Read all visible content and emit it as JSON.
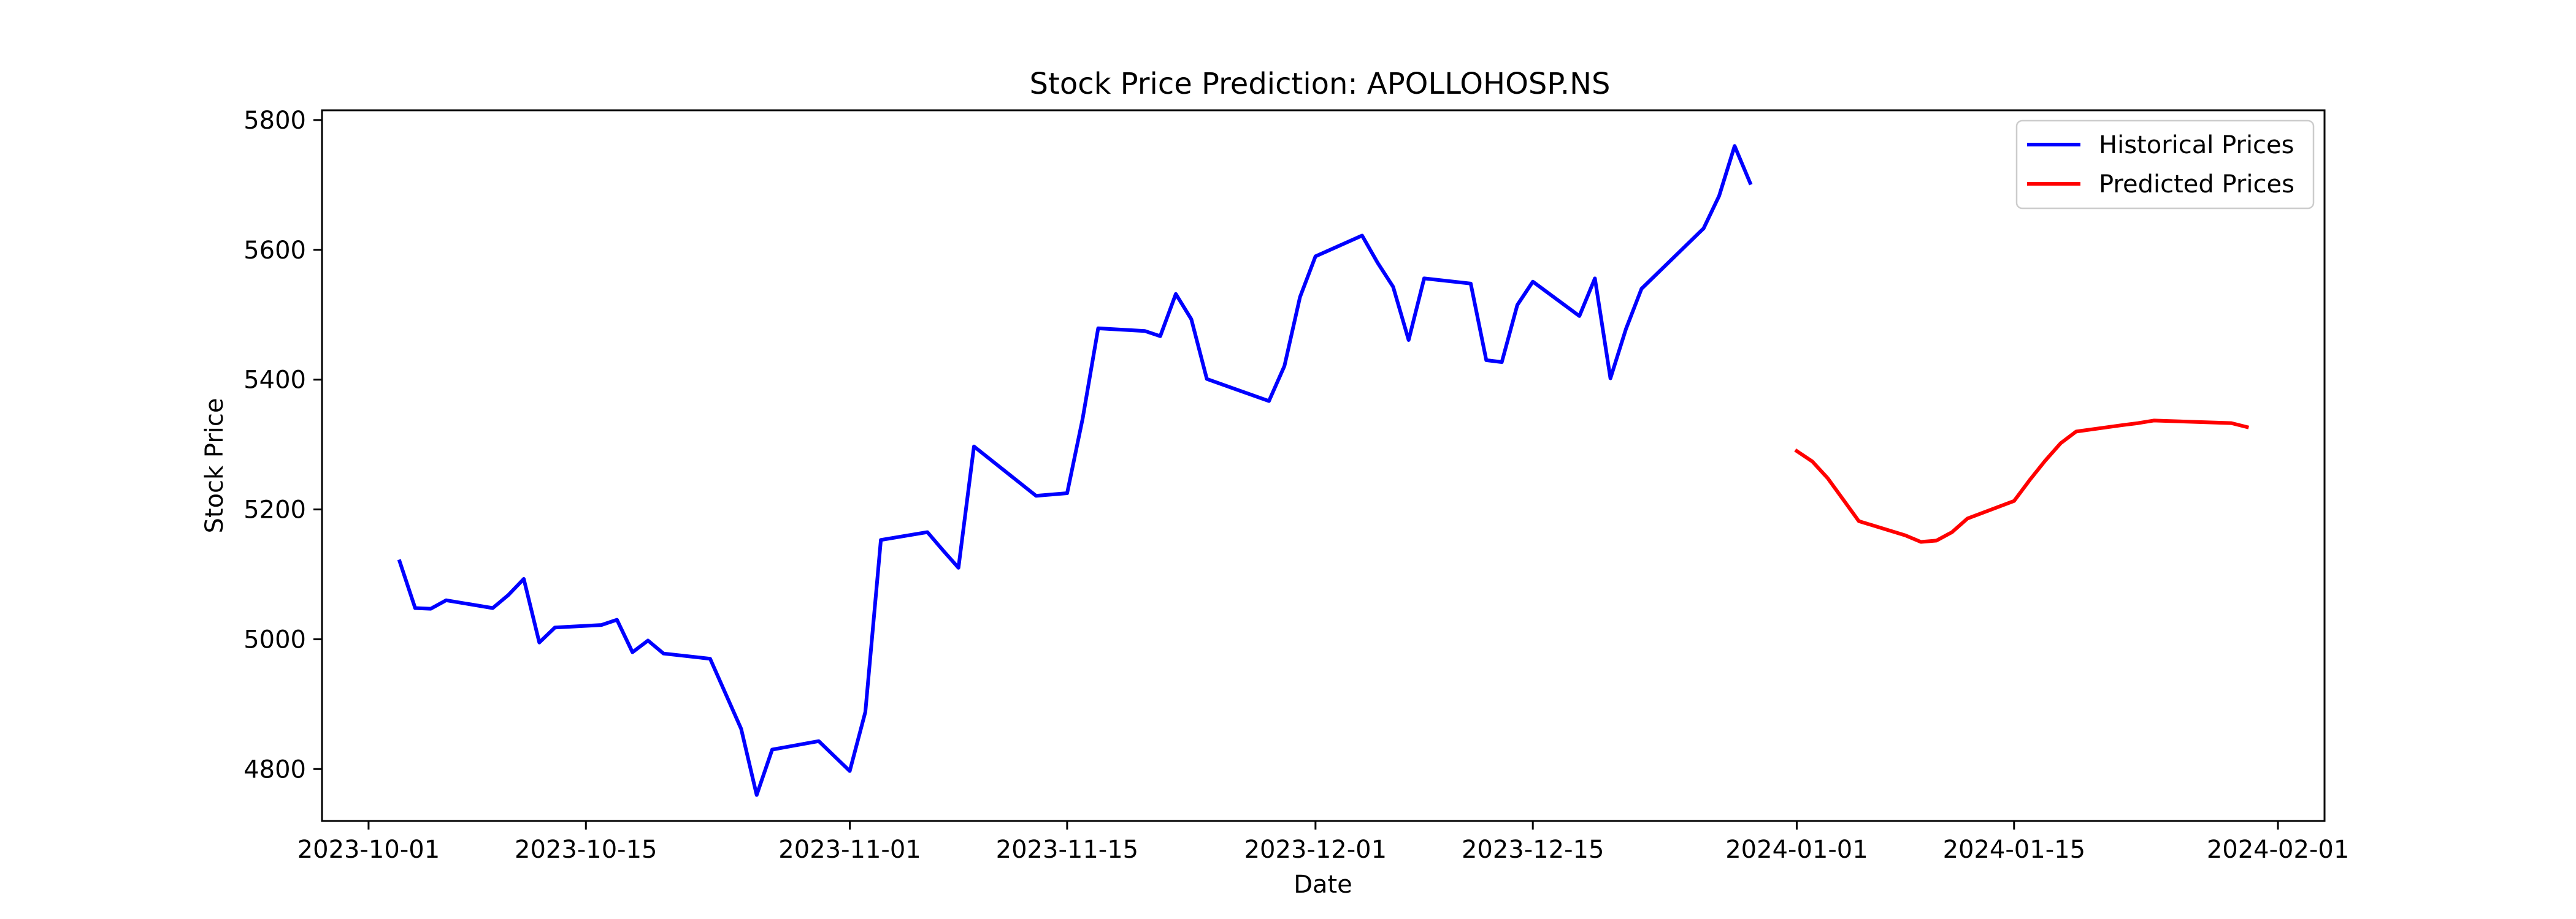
{
  "chart_data": {
    "type": "line",
    "title": "Stock Price Prediction: APOLLOHOSP.NS",
    "xlabel": "Date",
    "ylabel": "Stock Price",
    "xlim": [
      "2023-09-28",
      "2024-02-04"
    ],
    "ylim": [
      4720,
      5815
    ],
    "x_ticks": [
      "2023-10-01",
      "2023-10-15",
      "2023-11-01",
      "2023-11-15",
      "2023-12-01",
      "2023-12-15",
      "2024-01-01",
      "2024-01-15",
      "2024-02-01"
    ],
    "y_ticks": [
      4800,
      5000,
      5200,
      5400,
      5600,
      5800
    ],
    "grid": false,
    "legend_position": "top-right",
    "series": [
      {
        "name": "Historical Prices",
        "color": "#0000ff",
        "points": [
          [
            "2023-10-03",
            5120
          ],
          [
            "2023-10-04",
            5048
          ],
          [
            "2023-10-05",
            5047
          ],
          [
            "2023-10-06",
            5060
          ],
          [
            "2023-10-09",
            5048
          ],
          [
            "2023-10-10",
            5068
          ],
          [
            "2023-10-11",
            5093
          ],
          [
            "2023-10-12",
            4995
          ],
          [
            "2023-10-13",
            5018
          ],
          [
            "2023-10-16",
            5022
          ],
          [
            "2023-10-17",
            5030
          ],
          [
            "2023-10-18",
            4980
          ],
          [
            "2023-10-19",
            4998
          ],
          [
            "2023-10-20",
            4978
          ],
          [
            "2023-10-23",
            4970
          ],
          [
            "2023-10-25",
            4862
          ],
          [
            "2023-10-26",
            4760
          ],
          [
            "2023-10-27",
            4830
          ],
          [
            "2023-10-30",
            4843
          ],
          [
            "2023-10-31",
            4820
          ],
          [
            "2023-11-01",
            4797
          ],
          [
            "2023-11-02",
            4888
          ],
          [
            "2023-11-03",
            5153
          ],
          [
            "2023-11-06",
            5165
          ],
          [
            "2023-11-07",
            5137
          ],
          [
            "2023-11-08",
            5110
          ],
          [
            "2023-11-09",
            5297
          ],
          [
            "2023-11-13",
            5221
          ],
          [
            "2023-11-15",
            5225
          ],
          [
            "2023-11-16",
            5340
          ],
          [
            "2023-11-17",
            5479
          ],
          [
            "2023-11-20",
            5475
          ],
          [
            "2023-11-21",
            5467
          ],
          [
            "2023-11-22",
            5532
          ],
          [
            "2023-11-23",
            5493
          ],
          [
            "2023-11-24",
            5401
          ],
          [
            "2023-11-28",
            5367
          ],
          [
            "2023-11-29",
            5421
          ],
          [
            "2023-11-30",
            5527
          ],
          [
            "2023-12-01",
            5590
          ],
          [
            "2023-12-04",
            5622
          ],
          [
            "2023-12-05",
            5580
          ],
          [
            "2023-12-06",
            5543
          ],
          [
            "2023-12-07",
            5461
          ],
          [
            "2023-12-08",
            5556
          ],
          [
            "2023-12-11",
            5548
          ],
          [
            "2023-12-12",
            5430
          ],
          [
            "2023-12-13",
            5427
          ],
          [
            "2023-12-14",
            5515
          ],
          [
            "2023-12-15",
            5551
          ],
          [
            "2023-12-18",
            5498
          ],
          [
            "2023-12-19",
            5556
          ],
          [
            "2023-12-20",
            5402
          ],
          [
            "2023-12-21",
            5478
          ],
          [
            "2023-12-22",
            5540
          ],
          [
            "2023-12-26",
            5633
          ],
          [
            "2023-12-27",
            5683
          ],
          [
            "2023-12-28",
            5760
          ],
          [
            "2023-12-29",
            5703
          ]
        ]
      },
      {
        "name": "Predicted Prices",
        "color": "#ff0000",
        "points": [
          [
            "2024-01-01",
            5290
          ],
          [
            "2024-01-02",
            5274
          ],
          [
            "2024-01-03",
            5248
          ],
          [
            "2024-01-04",
            5215
          ],
          [
            "2024-01-05",
            5182
          ],
          [
            "2024-01-08",
            5160
          ],
          [
            "2024-01-09",
            5150
          ],
          [
            "2024-01-10",
            5152
          ],
          [
            "2024-01-11",
            5165
          ],
          [
            "2024-01-12",
            5186
          ],
          [
            "2024-01-15",
            5213
          ],
          [
            "2024-01-16",
            5245
          ],
          [
            "2024-01-17",
            5275
          ],
          [
            "2024-01-18",
            5302
          ],
          [
            "2024-01-19",
            5320
          ],
          [
            "2024-01-22",
            5330
          ],
          [
            "2024-01-23",
            5333
          ],
          [
            "2024-01-24",
            5337
          ],
          [
            "2024-01-29",
            5333
          ],
          [
            "2024-01-30",
            5327
          ]
        ]
      }
    ]
  }
}
